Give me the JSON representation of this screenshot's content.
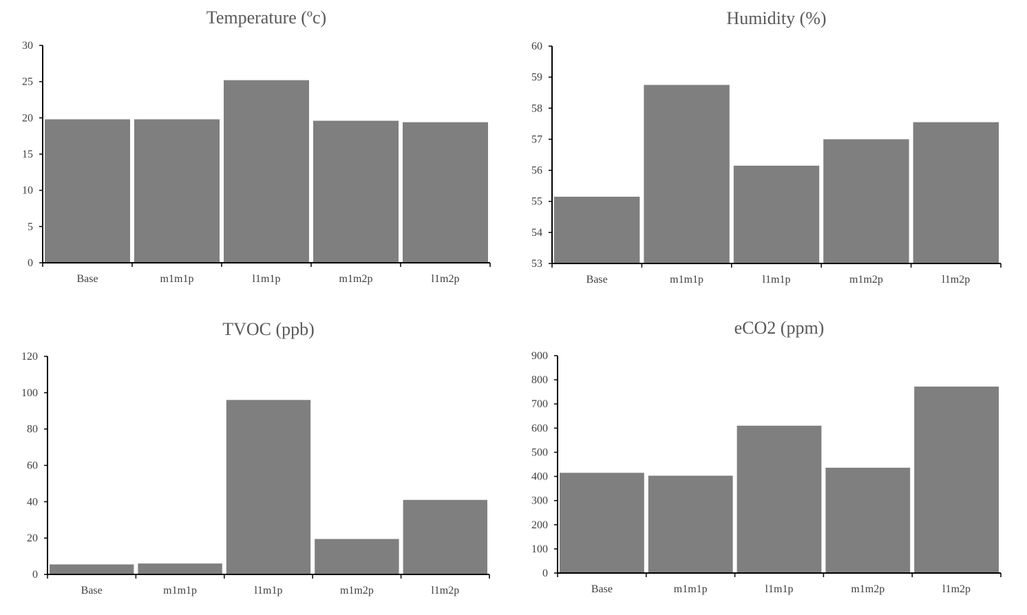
{
  "chart_data": [
    {
      "type": "bar",
      "title": "Temperature (ºc)",
      "xlabel": "",
      "ylabel": "",
      "categories": [
        "Base",
        "m1m1p",
        "l1m1p",
        "m1m2p",
        "l1m2p"
      ],
      "values": [
        19.8,
        19.8,
        25.2,
        19.6,
        19.4
      ],
      "ylim": [
        0,
        30
      ],
      "yticks": [
        "0",
        "5",
        "10",
        "15",
        "20",
        "25",
        "30"
      ],
      "grid": false,
      "legend": "none",
      "bar_color": "#7f7f7f"
    },
    {
      "type": "bar",
      "title": "Humidity (%)",
      "xlabel": "",
      "ylabel": "",
      "categories": [
        "Base",
        "m1m1p",
        "l1m1p",
        "m1m2p",
        "l1m2p"
      ],
      "values": [
        55.15,
        58.75,
        56.15,
        57.0,
        57.55
      ],
      "ylim": [
        53,
        60
      ],
      "yticks": [
        "53",
        "54",
        "55",
        "56",
        "57",
        "58",
        "59",
        "60"
      ],
      "grid": false,
      "legend": "none",
      "bar_color": "#7f7f7f"
    },
    {
      "type": "bar",
      "title": "TVOC (ppb)",
      "xlabel": "",
      "ylabel": "",
      "categories": [
        "Base",
        "m1m1p",
        "l1m1p",
        "m1m2p",
        "l1m2p"
      ],
      "values": [
        5.5,
        6,
        96,
        19.5,
        41
      ],
      "ylim": [
        0,
        120
      ],
      "yticks": [
        "0",
        "20",
        "40",
        "60",
        "80",
        "100",
        "120"
      ],
      "grid": false,
      "legend": "none",
      "bar_color": "#7f7f7f"
    },
    {
      "type": "bar",
      "title": "eCO2 (ppm)",
      "xlabel": "",
      "ylabel": "",
      "categories": [
        "Base",
        "m1m1p",
        "l1m1p",
        "m1m2p",
        "l1m2p"
      ],
      "values": [
        415,
        403,
        610,
        436,
        772
      ],
      "ylim": [
        0,
        900
      ],
      "yticks": [
        "0",
        "100",
        "200",
        "300",
        "400",
        "500",
        "600",
        "700",
        "800",
        "900"
      ],
      "grid": false,
      "legend": "none",
      "bar_color": "#7f7f7f"
    }
  ]
}
